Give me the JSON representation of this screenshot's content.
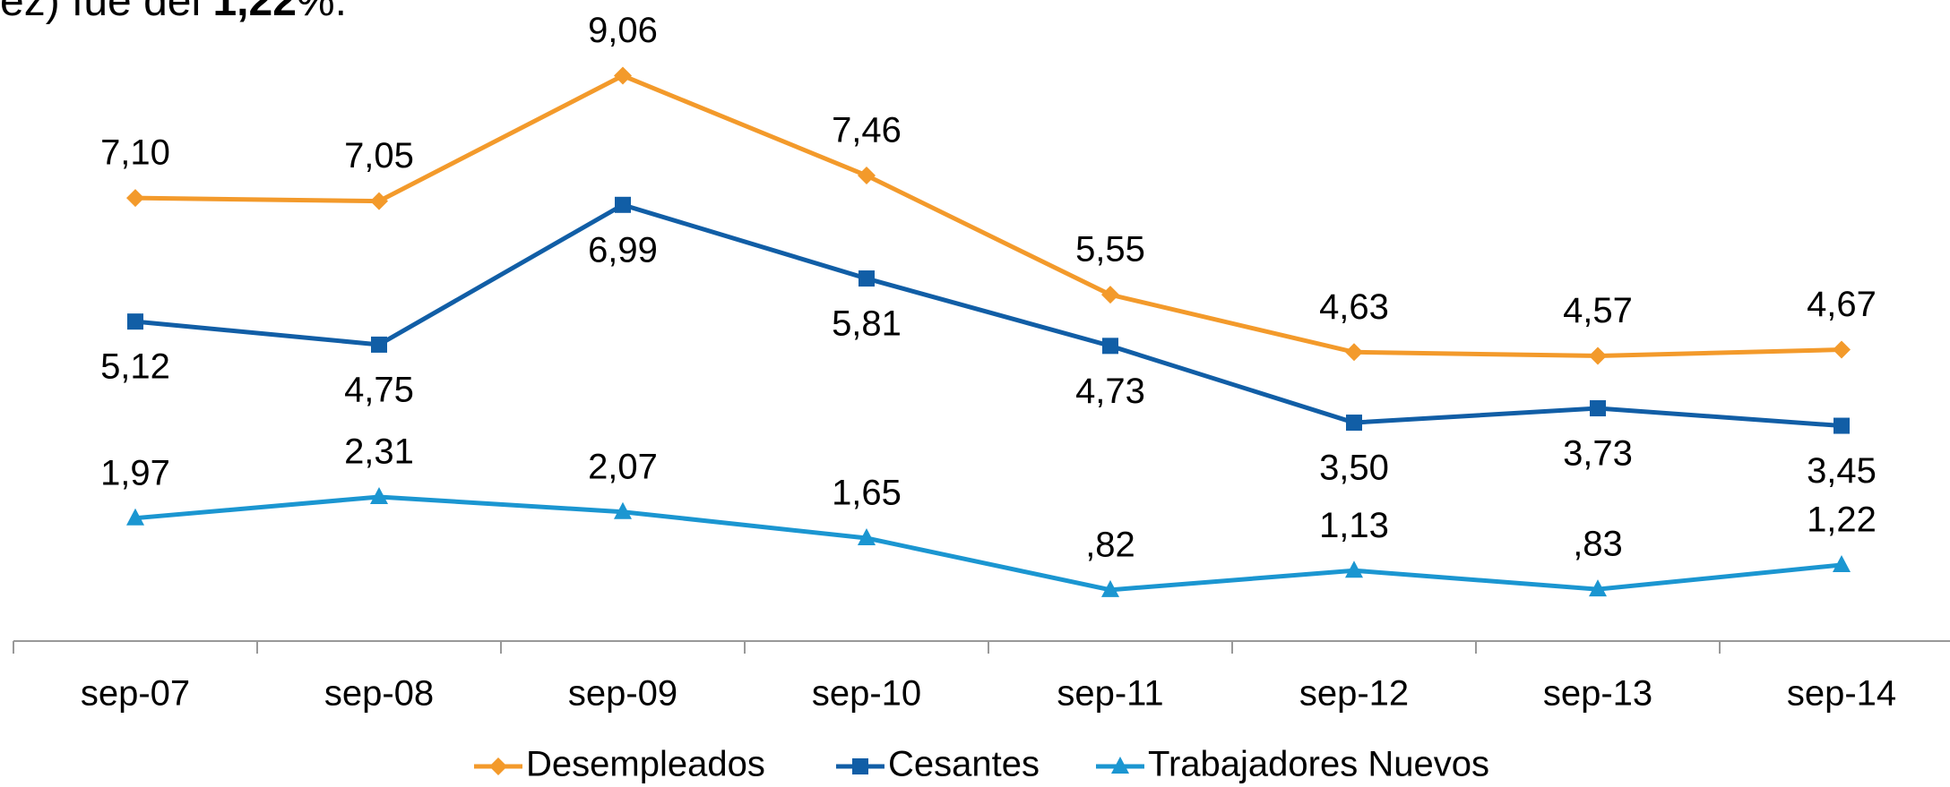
{
  "note": {
    "before": "ez) fue del ",
    "bold": "1,22",
    "after": "%."
  },
  "chart_data": {
    "type": "line",
    "categories": [
      "sep-07",
      "sep-08",
      "sep-09",
      "sep-10",
      "sep-11",
      "sep-12",
      "sep-13",
      "sep-14"
    ],
    "series": [
      {
        "name": "Desempleados",
        "color": "#f39a2b",
        "marker": "diamond",
        "values": [
          7.1,
          7.05,
          9.06,
          7.46,
          5.55,
          4.63,
          4.57,
          4.67
        ],
        "value_labels": [
          "7,10",
          "7,05",
          "9,06",
          "7,46",
          "5,55",
          "4,63",
          "4,57",
          "4,67"
        ]
      },
      {
        "name": "Cesantes",
        "color": "#115ea6",
        "marker": "square",
        "values": [
          5.12,
          4.75,
          6.99,
          5.81,
          4.73,
          3.5,
          3.73,
          3.45
        ],
        "value_labels": [
          "5,12",
          "4,75",
          "6,99",
          "5,81",
          "4,73",
          "3,50",
          "3,73",
          "3,45"
        ]
      },
      {
        "name": "Trabajadores Nuevos",
        "color": "#1b96d1",
        "marker": "triangle",
        "values": [
          1.97,
          2.31,
          2.07,
          1.65,
          0.82,
          1.13,
          0.83,
          1.22
        ],
        "value_labels": [
          "1,97",
          "2,31",
          "2,07",
          "1,65",
          ",82",
          "1,13",
          ",83",
          "1,22"
        ]
      }
    ]
  }
}
